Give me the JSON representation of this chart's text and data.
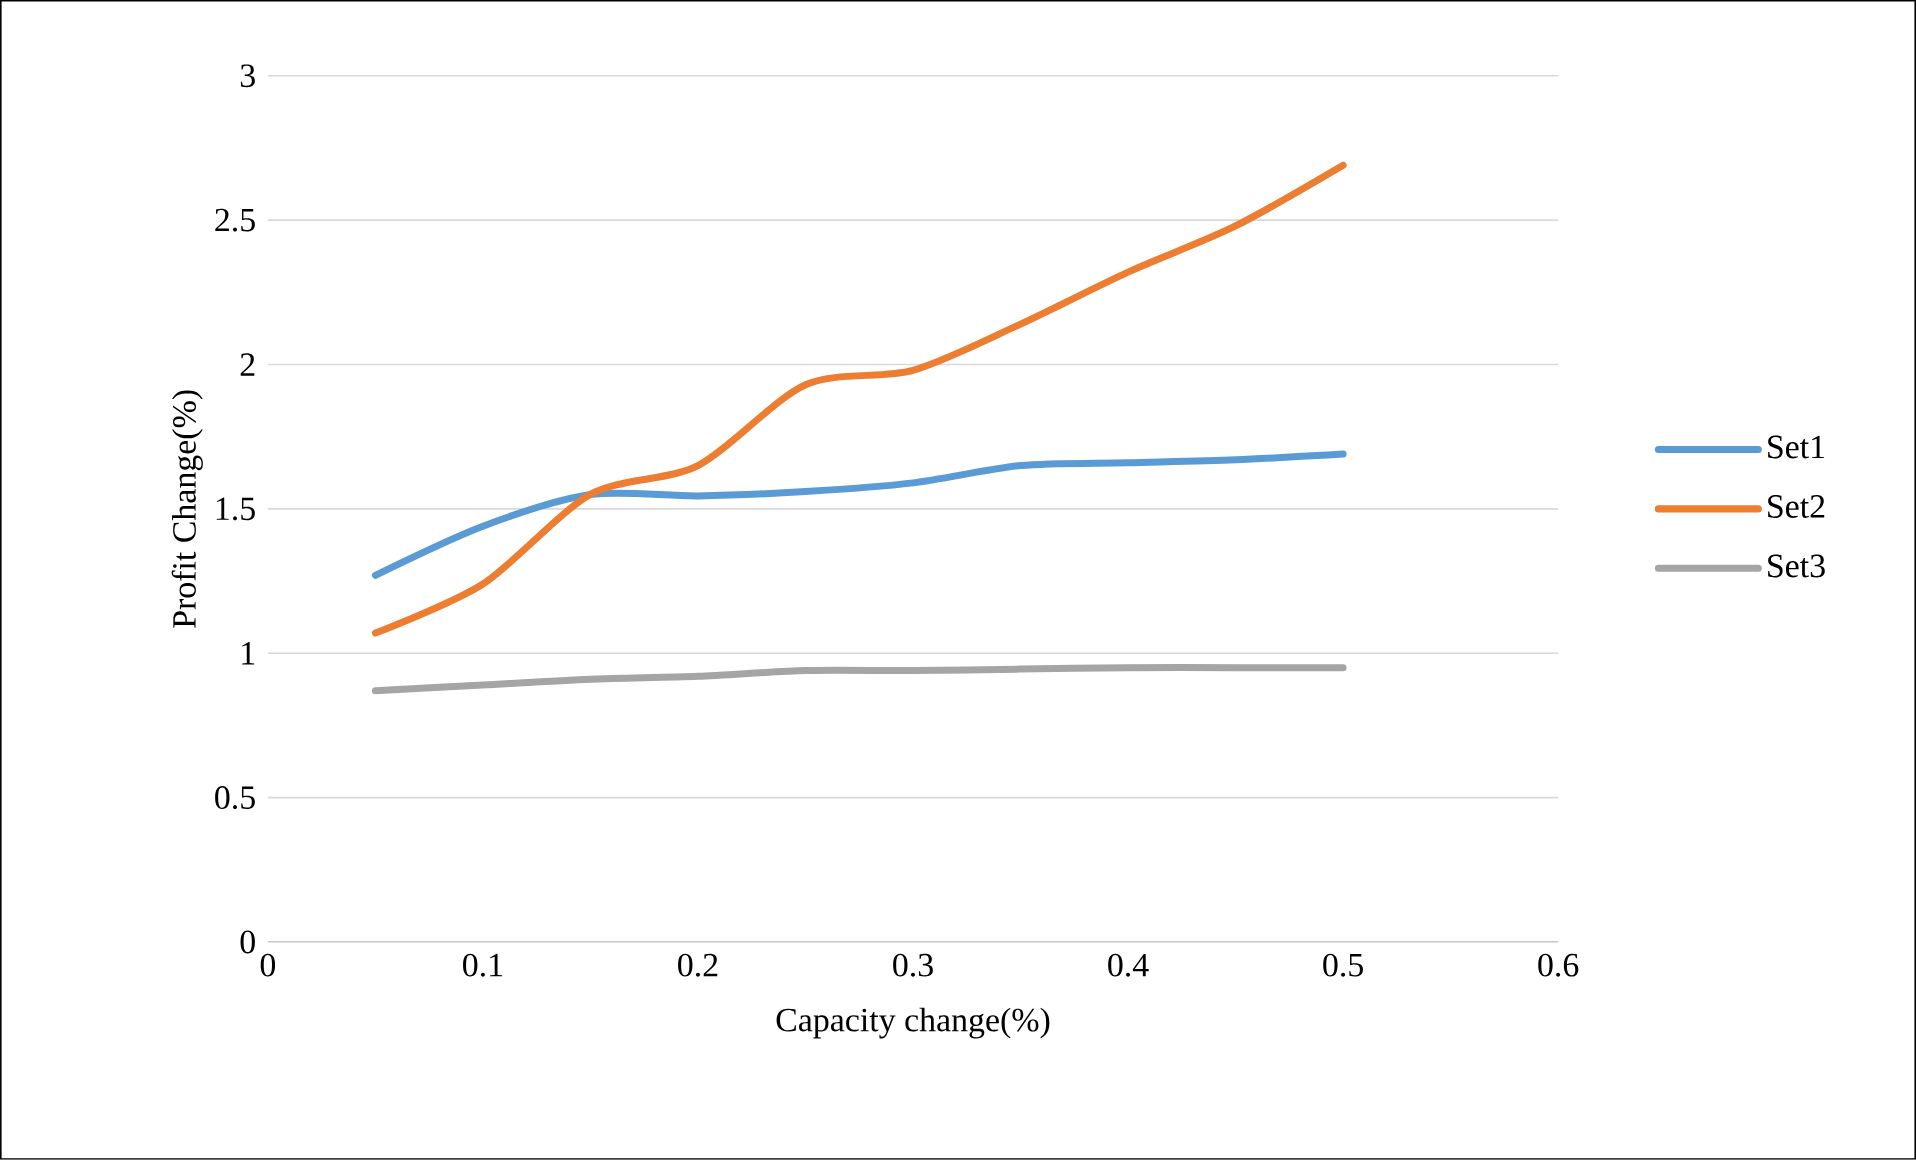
{
  "chart_data": {
    "type": "line",
    "xlabel": "Capacity change(%)",
    "ylabel": "Profit Change(%)",
    "x": [
      0.05,
      0.1,
      0.15,
      0.2,
      0.25,
      0.3,
      0.35,
      0.4,
      0.45,
      0.5
    ],
    "series": [
      {
        "name": "Set1",
        "color": "#5b9bd5",
        "values": [
          1.27,
          1.44,
          1.55,
          1.545,
          1.56,
          1.59,
          1.65,
          1.66,
          1.67,
          1.69
        ]
      },
      {
        "name": "Set2",
        "color": "#ed7d31",
        "values": [
          1.07,
          1.24,
          1.55,
          1.65,
          1.93,
          1.98,
          2.14,
          2.32,
          2.48,
          2.69
        ]
      },
      {
        "name": "Set3",
        "color": "#a5a5a5",
        "values": [
          0.87,
          0.89,
          0.91,
          0.92,
          0.94,
          0.94,
          0.945,
          0.95,
          0.95,
          0.95
        ]
      }
    ],
    "xlim": [
      0,
      0.6
    ],
    "xticks": [
      0,
      0.1,
      0.2,
      0.3,
      0.4,
      0.5,
      0.6
    ],
    "ylim": [
      0,
      3
    ],
    "yticks": [
      0,
      0.5,
      1,
      1.5,
      2,
      2.5,
      3
    ],
    "grid": "y",
    "legend": "right",
    "marker": "none",
    "line_style": "solid"
  }
}
